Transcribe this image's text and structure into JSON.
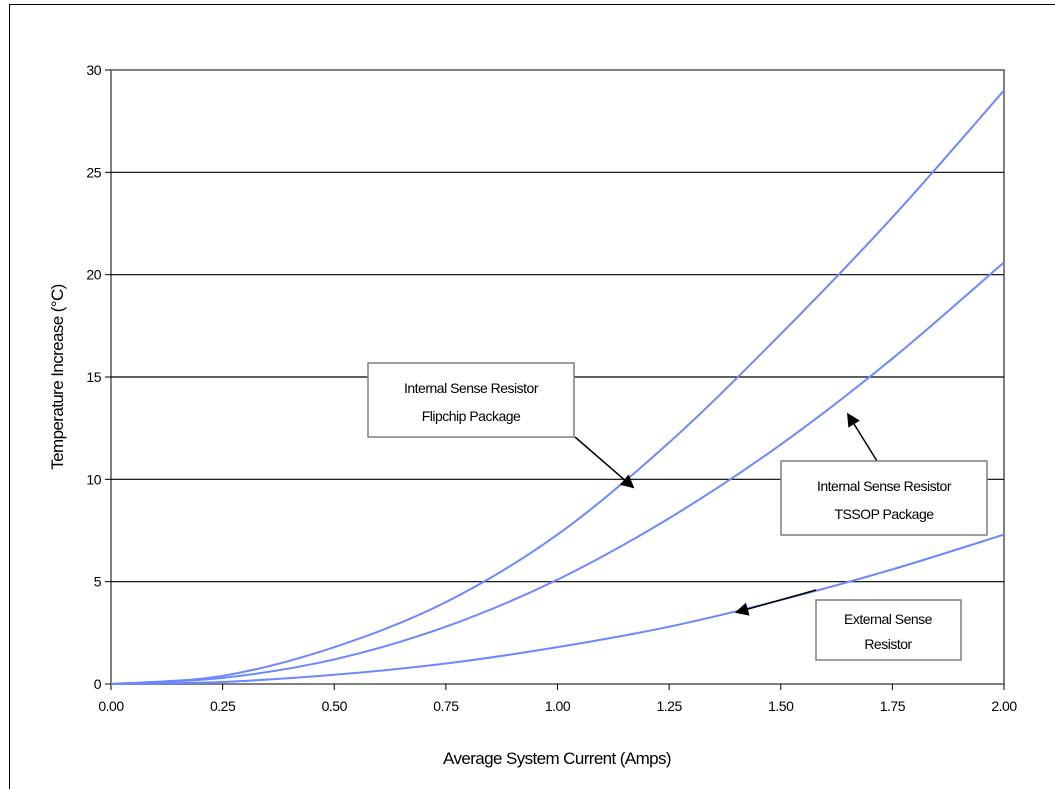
{
  "chart_data": {
    "type": "line",
    "title": "",
    "xlabel": "Average System Current (Amps)",
    "ylabel": "Temperature Increase (°C)",
    "xlim": [
      0,
      2.0
    ],
    "ylim": [
      0,
      30
    ],
    "x_ticks": [
      "0.00",
      "0.25",
      "0.50",
      "0.75",
      "1.00",
      "1.25",
      "1.50",
      "1.75",
      "2.00"
    ],
    "y_ticks": [
      "0",
      "5",
      "10",
      "15",
      "20",
      "25",
      "30"
    ],
    "grid": "horizontal",
    "line_color": "#6b88ff",
    "series": [
      {
        "name": "Internal Sense Resistor Flipchip Package",
        "x": [
          0,
          0.25,
          0.5,
          0.75,
          1.0,
          1.25,
          1.5,
          1.75,
          2.0
        ],
        "y": [
          0,
          0.4,
          1.8,
          4.0,
          7.3,
          11.8,
          17.1,
          22.8,
          29.0
        ]
      },
      {
        "name": "Internal Sense Resistor TSSOP Package",
        "x": [
          0,
          0.25,
          0.5,
          0.75,
          1.0,
          1.25,
          1.5,
          1.75,
          2.0
        ],
        "y": [
          0,
          0.3,
          1.2,
          2.8,
          5.1,
          8.1,
          11.7,
          15.9,
          20.6
        ]
      },
      {
        "name": "External Sense Resistor",
        "x": [
          0,
          0.25,
          0.5,
          0.75,
          1.0,
          1.25,
          1.5,
          1.75,
          2.0
        ],
        "y": [
          0,
          0.1,
          0.45,
          1.0,
          1.8,
          2.8,
          4.1,
          5.6,
          7.3
        ]
      }
    ],
    "annotations": [
      {
        "lines": [
          "Internal Sense Resistor",
          "Flipchip Package"
        ],
        "series": 0,
        "target": [
          1.17,
          9.6
        ]
      },
      {
        "lines": [
          "Internal Sense Resistor",
          "TSSOP Package"
        ],
        "series": 1,
        "target": [
          1.65,
          13.2
        ]
      },
      {
        "lines": [
          "External Sense",
          "Resistor"
        ],
        "series": 2,
        "target": [
          1.4,
          3.5
        ]
      }
    ]
  }
}
